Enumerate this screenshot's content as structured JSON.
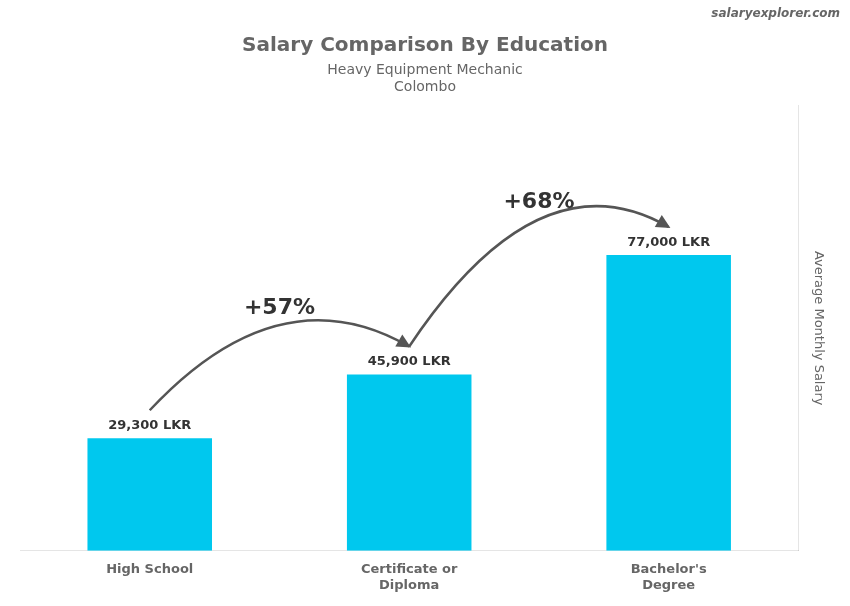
{
  "chart_data": {
    "type": "bar",
    "title": "Salary Comparison By Education",
    "subtitle": [
      "Heavy Equipment Mechanic",
      "Colombo"
    ],
    "ylabel": "Average Monthly Salary",
    "categories": [
      "High School",
      "Certificate or\nDiploma",
      "Bachelor's\nDegree"
    ],
    "values": [
      29300,
      45900,
      77000
    ],
    "value_labels": [
      "29,300 LKR",
      "45,900 LKR",
      "77,000 LKR"
    ],
    "data_labels": true,
    "color": "#00c8ee",
    "ylim": [
      0,
      115900
    ],
    "tick_labels": "x",
    "grid": false,
    "annotations": [
      {
        "text": "+57%",
        "from": "High School",
        "to": "Certificate or\nDiploma"
      },
      {
        "text": "+68%",
        "from": "Certificate or\nDiploma",
        "to": "Bachelor's\nDegree"
      },
      {
        "text": "salaryexplorer.com"
      }
    ]
  }
}
